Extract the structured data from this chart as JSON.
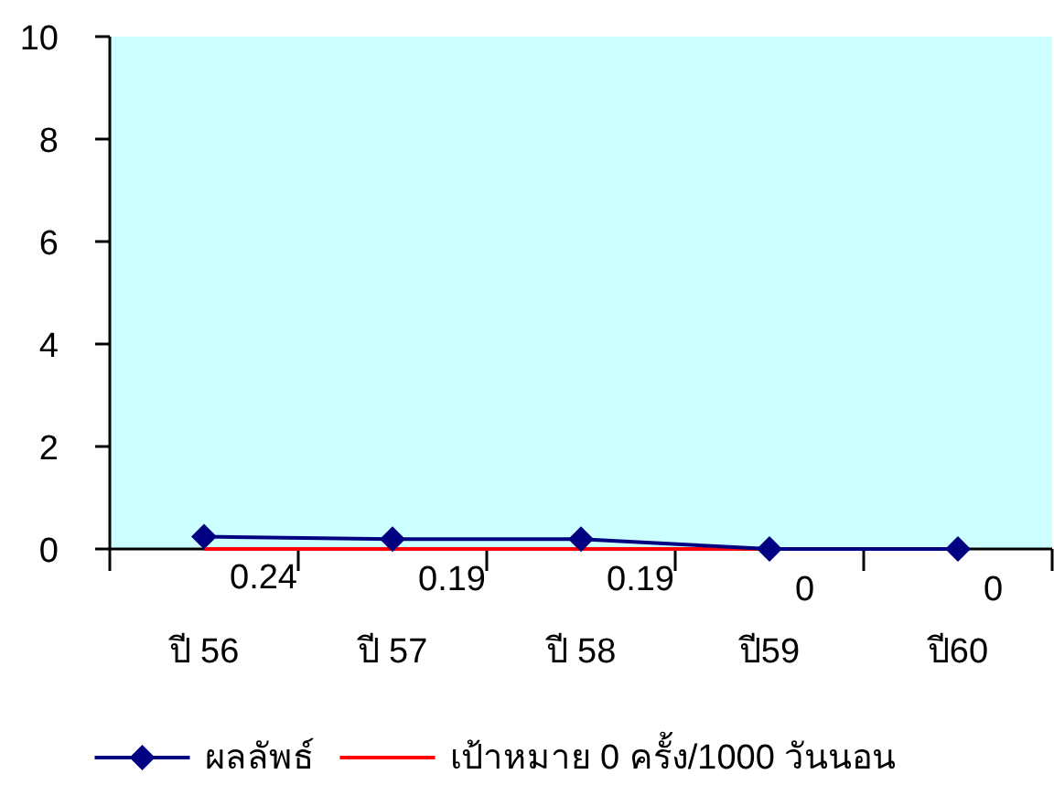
{
  "chart_data": {
    "type": "line",
    "categories": [
      "ปี 56",
      "ปี 57",
      "ปี 58",
      "ปี59",
      "ปี60"
    ],
    "series": [
      {
        "name": "ผลลัพธ์",
        "color": "#000080",
        "marker": "diamond",
        "values": [
          0.24,
          0.19,
          0.19,
          0,
          0
        ],
        "value_labels": [
          "0.24",
          "0.19",
          "0.19",
          "0",
          "0"
        ]
      },
      {
        "name": "เป้าหมาย 0 ครั้ง/1000 วันนอน",
        "color": "#ff0000",
        "marker": "none",
        "values": [
          0,
          0,
          0,
          0,
          0
        ]
      }
    ],
    "ylim": [
      0,
      10
    ],
    "yticks": [
      0,
      2,
      4,
      6,
      8,
      10
    ],
    "legend": "bottom"
  }
}
